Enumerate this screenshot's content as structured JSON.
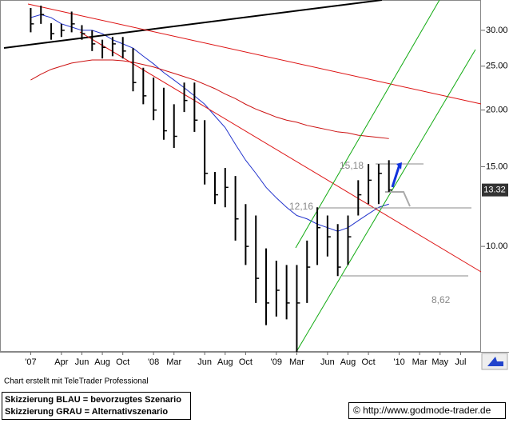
{
  "chart_data": {
    "type": "ohlc",
    "log_scale": true,
    "color": "#000000",
    "x": [
      "2007-01",
      "2007-02",
      "2007-03",
      "2007-04",
      "2007-05",
      "2007-06",
      "2007-07",
      "2007-08",
      "2007-09",
      "2007-10",
      "2007-11",
      "2007-12",
      "2008-01",
      "2008-02",
      "2008-03",
      "2008-04",
      "2008-05",
      "2008-06",
      "2008-07",
      "2008-08",
      "2008-09",
      "2008-10",
      "2008-11",
      "2008-12",
      "2009-01",
      "2009-02",
      "2009-03",
      "2009-04",
      "2009-05",
      "2009-06",
      "2009-07",
      "2009-08",
      "2009-09",
      "2009-10",
      "2009-11",
      "2009-12"
    ],
    "high": [
      33.6,
      34,
      31.1,
      31,
      33,
      30.8,
      30,
      28.6,
      29,
      29,
      27.4,
      24.8,
      23.6,
      22.4,
      20.6,
      23,
      23,
      19,
      14.6,
      14.9,
      14.3,
      12.4,
      11.7,
      9.9,
      9.3,
      9.1,
      9.1,
      10.3,
      12.2,
      11.7,
      11.2,
      11.7,
      14,
      15.2,
      15.2,
      15.5
    ],
    "low": [
      29.7,
      31,
      28.6,
      29,
      29.7,
      28.6,
      27,
      26,
      26.3,
      26,
      22,
      20.6,
      19,
      17.2,
      16.5,
      19.8,
      17.9,
      13.7,
      12.4,
      12.2,
      10.3,
      9.1,
      7.5,
      6.7,
      7,
      6.9,
      5.85,
      7.5,
      9.1,
      9.5,
      8.6,
      9.1,
      11.7,
      12.4,
      12.4,
      13.2
    ],
    "close": [
      31,
      32.5,
      29.5,
      30,
      31,
      29.5,
      28,
      27.5,
      28,
      27,
      23,
      21.5,
      20,
      18,
      17.5,
      21,
      19,
      14.5,
      13,
      13.5,
      11.5,
      10,
      8.5,
      7.5,
      8,
      7.5,
      7.5,
      9,
      11,
      10.5,
      9,
      10.5,
      13,
      14,
      14.5,
      13.32
    ],
    "overlays": [
      {
        "color": "#2233cc",
        "values": [
          32,
          32.5,
          32,
          31,
          30.5,
          30,
          30,
          29.5,
          28.6,
          28,
          27.4,
          26.3,
          25.3,
          24.2,
          23.3,
          22.4,
          21.5,
          20.6,
          19.4,
          18.3,
          16.8,
          15.5,
          14.5,
          13.5,
          12.8,
          12.2,
          11.7,
          11.5,
          11.2,
          11,
          10.8,
          11,
          11.4,
          11.8,
          12.2,
          12.4
        ]
      },
      {
        "color": "#cc1111",
        "values": [
          23.3,
          24,
          24.6,
          25,
          25.4,
          25.6,
          25.8,
          25.8,
          25.8,
          25.7,
          25.5,
          25.2,
          24.9,
          24.5,
          24.1,
          23.7,
          23.3,
          22.8,
          22.3,
          21.7,
          21.2,
          20.6,
          20.1,
          19.7,
          19.3,
          19,
          18.8,
          18.5,
          18.3,
          18.1,
          17.9,
          17.8,
          17.6,
          17.5,
          17.4,
          17.3
        ]
      }
    ],
    "ylim": [
      5.85,
      35
    ],
    "yticks": [
      {
        "value": 10,
        "label": "10.00"
      },
      {
        "value": 15,
        "label": "15.00"
      },
      {
        "value": 20,
        "label": "20.00"
      },
      {
        "value": 25,
        "label": "25.00"
      },
      {
        "value": 30,
        "label": "30.00"
      }
    ],
    "xlim": [
      "2006-10",
      "2010-09"
    ],
    "xticks": [
      {
        "value": "2007-01",
        "label": "'07"
      },
      {
        "value": "2007-04",
        "label": "Apr"
      },
      {
        "value": "2007-06",
        "label": "Jun"
      },
      {
        "value": "2007-08",
        "label": "Aug"
      },
      {
        "value": "2007-10",
        "label": "Oct"
      },
      {
        "value": "2008-01",
        "label": "'08"
      },
      {
        "value": "2008-03",
        "label": "Mar"
      },
      {
        "value": "2008-06",
        "label": "Jun"
      },
      {
        "value": "2008-08",
        "label": "Aug"
      },
      {
        "value": "2008-10",
        "label": "Oct"
      },
      {
        "value": "2009-01",
        "label": "'09"
      },
      {
        "value": "2009-03",
        "label": "Mar"
      },
      {
        "value": "2009-06",
        "label": "Jun"
      },
      {
        "value": "2009-08",
        "label": "Aug"
      },
      {
        "value": "2009-10",
        "label": "Oct"
      },
      {
        "value": "2010-01",
        "label": "'10"
      },
      {
        "value": "2010-03",
        "label": "Mar"
      },
      {
        "value": "2010-05",
        "label": "May"
      },
      {
        "value": "2010-07",
        "label": "Jul"
      }
    ],
    "annotations": [
      "15,18",
      "12,16",
      "8,62"
    ],
    "footer": {
      "credit": "Chart erstellt mit TeleTrader Professional",
      "legend_lines": [
        "Skizzierung BLAU = bevorzugtes Szenario",
        "Skizzierung GRAU = Alternativszenario"
      ],
      "copyright": "© http://www.godmode-trader.de"
    }
  }
}
